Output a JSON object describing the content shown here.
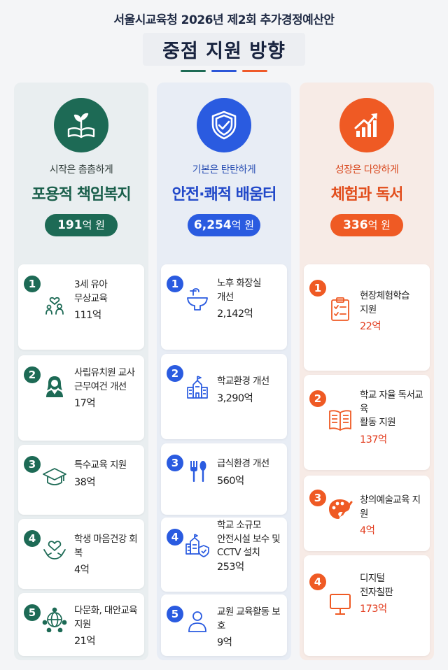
{
  "header": {
    "subtitle": "서울시교육청 2026년 제2회 추가경정예산안",
    "title": "중점 지원 방향"
  },
  "colors": {
    "green": "#1d6a55",
    "blue": "#2a5be0",
    "orange": "#ef5a24"
  },
  "columns": [
    {
      "icon": "book-sprout-icon",
      "tagline": "시작은 촘촘하게",
      "heading": "포용적 책임복지",
      "budget_num": "191",
      "budget_unit": "억 원",
      "items": [
        {
          "num": "1",
          "icon": "parent-child-icon",
          "label": "3세 유아\n무상교육",
          "amount": "111억"
        },
        {
          "num": "2",
          "icon": "teacher-icon",
          "label": "사립유치원 교사\n근무여건 개선",
          "amount": "17억"
        },
        {
          "num": "3",
          "icon": "graduation-cap-icon",
          "label": "특수교육 지원",
          "amount": "38억"
        },
        {
          "num": "4",
          "icon": "heart-hands-icon",
          "label": "학생 마음건강 회복",
          "amount": "4억"
        },
        {
          "num": "5",
          "icon": "globe-people-icon",
          "label": "다문화, 대안교육 지원",
          "amount": "21억"
        }
      ]
    },
    {
      "icon": "shield-check-icon",
      "tagline": "기본은 탄탄하게",
      "heading": "안전·쾌적 배움터",
      "budget_num": "6,254",
      "budget_unit": "억 원",
      "items": [
        {
          "num": "1",
          "icon": "sink-faucet-icon",
          "label": "노후 화장실\n개선",
          "amount": "2,142억"
        },
        {
          "num": "2",
          "icon": "school-building-icon",
          "label": "학교환경 개선",
          "amount": "3,290억"
        },
        {
          "num": "3",
          "icon": "fork-spoon-icon",
          "label": "급식환경 개선",
          "amount": "560억"
        },
        {
          "num": "4",
          "icon": "school-shield-icon",
          "label": "학교 소규모\n안전시설 보수 및\nCCTV 설치",
          "amount": "253억"
        },
        {
          "num": "5",
          "icon": "person-icon",
          "label": "교원 교육활동 보호",
          "amount": "9억"
        }
      ]
    },
    {
      "icon": "growth-chart-icon",
      "tagline": "성장은 다양하게",
      "heading": "체험과 독서",
      "budget_num": "336",
      "budget_unit": "억 원",
      "items": [
        {
          "num": "1",
          "icon": "clipboard-check-icon",
          "label": "현장체험학습\n지원",
          "amount": "22억"
        },
        {
          "num": "2",
          "icon": "open-book-icon",
          "label": "학교 자율 독서교육\n활동 지원",
          "amount": "137억"
        },
        {
          "num": "3",
          "icon": "palette-brush-icon",
          "label": "창의예술교육 지원",
          "amount": "4억"
        },
        {
          "num": "4",
          "icon": "monitor-icon",
          "label": "디지털\n전자칠판",
          "amount": "173억"
        }
      ]
    }
  ]
}
